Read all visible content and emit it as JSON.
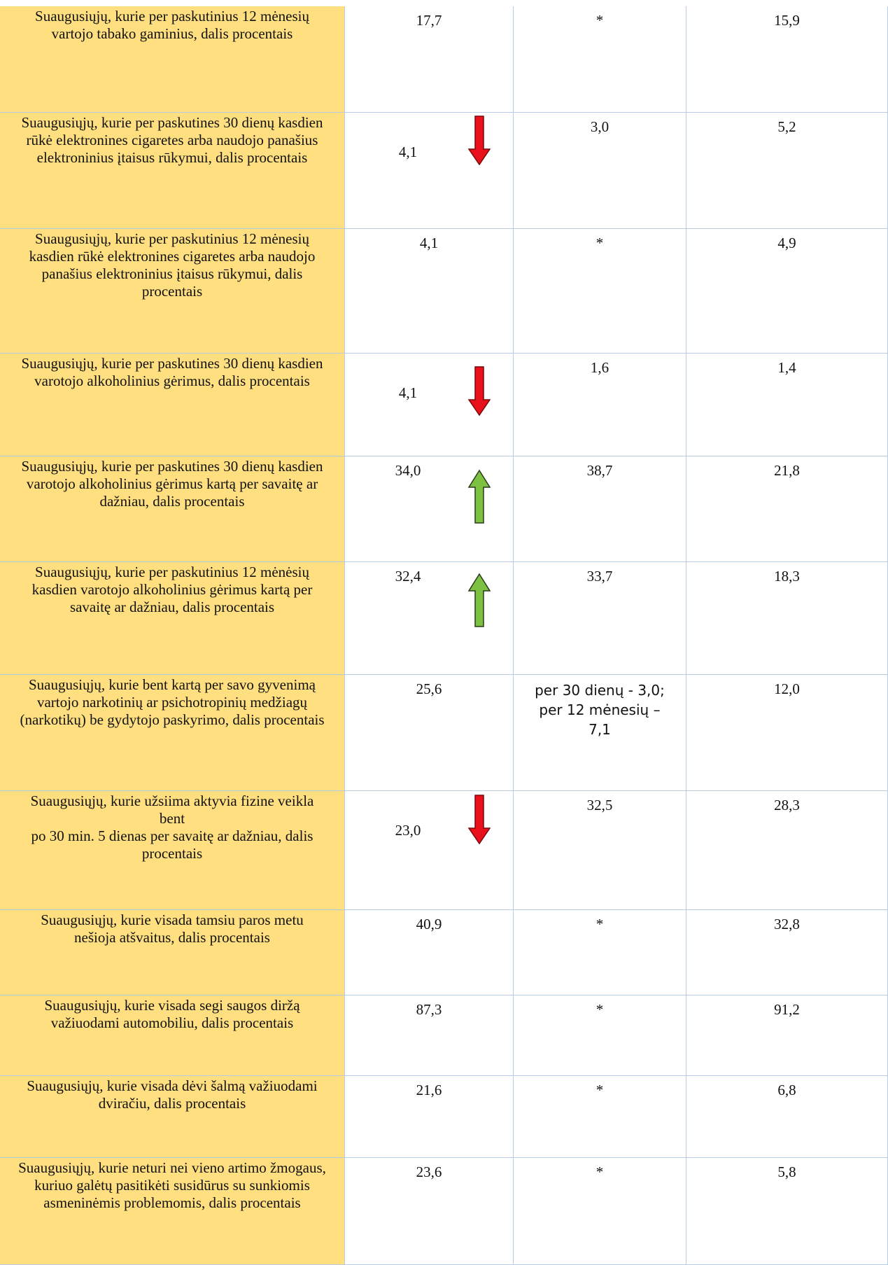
{
  "table": {
    "rows": [
      [
        "Suaugusiųjų, kurie per paskutinius 12 mėnesių vartojo tabako gaminius, dalis procentais",
        "17,7",
        "*",
        "15,9"
      ],
      [
        "Suaugusiųjų, kurie per paskutines 30 dienų kasdien rūkė elektronines cigaretes arba naudojo panašius elektroninius įtaisus rūkymui, dalis procentais",
        "4,1",
        "3,0",
        "5,2"
      ],
      [
        "Suaugusiųjų, kurie per paskutinius 12 mėnesių kasdien rūkė elektronines cigaretes arba naudojo panašius elektroninius įtaisus rūkymui, dalis procentais",
        "4,1",
        "*",
        "4,9"
      ],
      [
        "Suaugusiųjų, kurie per paskutines 30 dienų kasdien varotojo alkoholinius gėrimus, dalis procentais",
        "4,1",
        "1,6",
        "1,4"
      ],
      [
        "Suaugusiųjų, kurie per paskutines 30 dienų kasdien varotojo alkoholinius gėrimus kartą per savaitę ar dažniau, dalis procentais",
        "34,0",
        "38,7",
        "21,8"
      ],
      [
        "Suaugusiųjų, kurie per paskutinius 12 mėnėsių kasdien varotojo alkoholinius gėrimus kartą per savaitę ar dažniau, dalis procentais",
        "32,4",
        "33,7",
        "18,3"
      ],
      [
        "Suaugusiųjų, kurie bent kartą per savo gyvenimą vartojo narkotinių ar psichotropinių medžiagų (narkotikų) be gydytojo paskyrimo, dalis procentais",
        "25,6",
        "per 30 dienų - 3,0; per 12 mėnesių – 7,1",
        "12,0"
      ],
      [
        "Suaugusiųjų, kurie užsiima aktyvia fizine veikla bent\npo 30 min. 5 dienas per savaitę ar dažniau, dalis procentais",
        "23,0",
        "32,5",
        "28,3"
      ],
      [
        "Suaugusiųjų, kurie visada tamsiu paros metu nešioja atšvaitus, dalis procentais",
        "40,9",
        "*",
        "32,8"
      ],
      [
        "Suaugusiųjų, kurie visada segi saugos diržą važiuodami automobiliu, dalis procentais",
        "87,3",
        "*",
        "91,2"
      ],
      [
        "Suaugusiųjų, kurie visada dėvi šalmą važiuodami dviračiu, dalis procentais",
        "21,6",
        "*",
        "6,8"
      ],
      [
        "Suaugusiųjų, kurie neturi nei vieno artimo žmogaus, kuriuo galėtų pasitikėti susidūrus su sunkiomis asmeninėmis problemomis, dalis procentais",
        "23,6",
        "*",
        "5,8"
      ]
    ]
  }
}
